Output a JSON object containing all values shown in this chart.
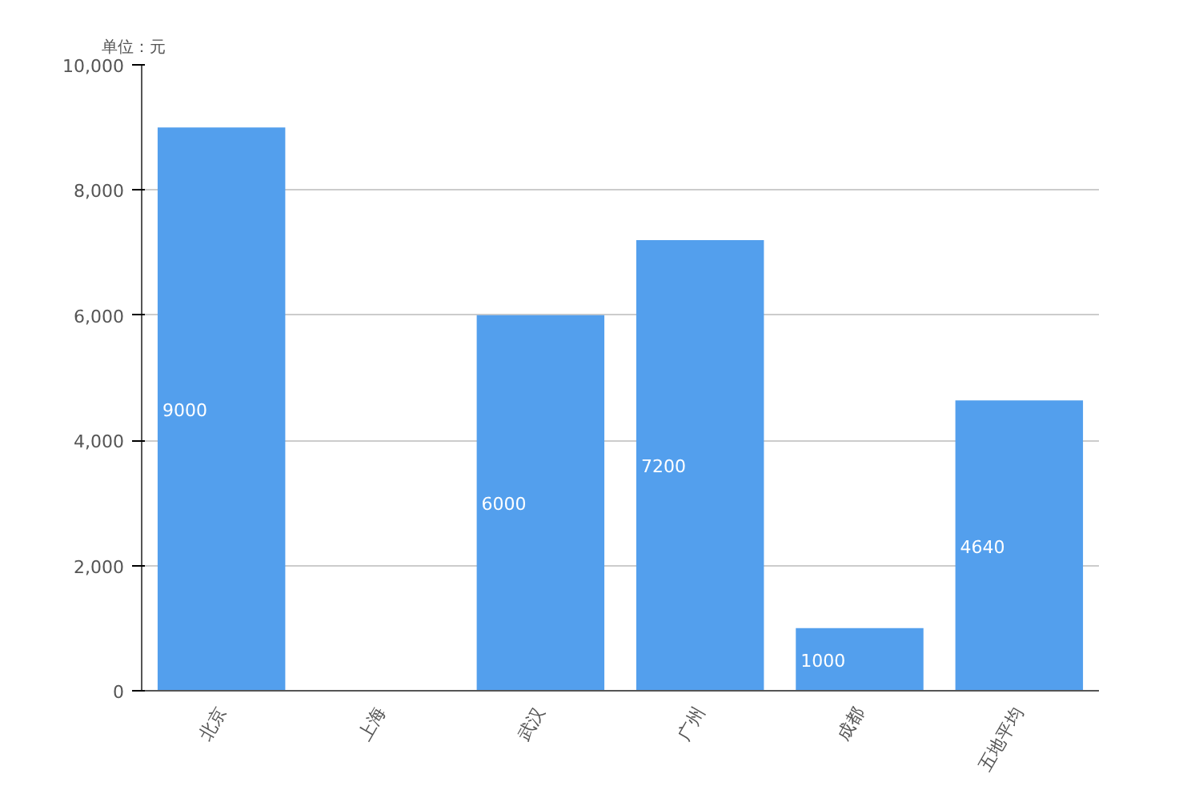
{
  "chart_data": {
    "type": "bar",
    "annotations": [
      "单位：元"
    ],
    "categories": [
      "北京",
      "上海",
      "武汉",
      "广州",
      "成都",
      "五地平均"
    ],
    "values": [
      9000,
      0,
      6000,
      7200,
      1000,
      4640
    ],
    "color": "#539fed",
    "value_labels": [
      "9000",
      null,
      "6000",
      "7200",
      "1000",
      "4640"
    ],
    "ylim": [
      0,
      10000
    ],
    "yticks": [
      {
        "value": 0,
        "label": "0"
      },
      {
        "value": 2000,
        "label": "2,000"
      },
      {
        "value": 4000,
        "label": "4,000"
      },
      {
        "value": 6000,
        "label": "6,000"
      },
      {
        "value": 8000,
        "label": "8,000"
      },
      {
        "value": 10000,
        "label": "10,000"
      }
    ],
    "grid": "y"
  }
}
